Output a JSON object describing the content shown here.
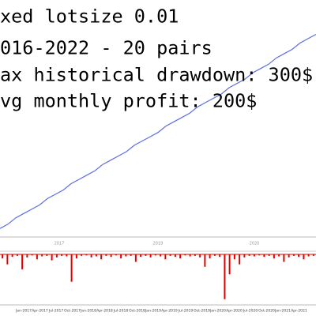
{
  "overlay_text": [
    "xed lotsize 0.01",
    "016-2022 - 20 pairs",
    "ax historical drawdown: 300$",
    "vg monthly profit: 200$"
  ],
  "chart_data": [
    {
      "type": "line",
      "color": "#5b6ee1",
      "ylim": [
        0,
        100
      ],
      "values": [
        4,
        6,
        9,
        11,
        13,
        15,
        18,
        20,
        22,
        25,
        27,
        29,
        31,
        34,
        36,
        38,
        40,
        43,
        45,
        47,
        49,
        52,
        54,
        56,
        58,
        61,
        63,
        65,
        67,
        70,
        72,
        74,
        77,
        79,
        81,
        84,
        86,
        88,
        91,
        93,
        95
      ]
    },
    {
      "type": "bar",
      "color": "#e00000",
      "ylim": [
        -100,
        0
      ],
      "annotations": [
        "2017",
        "2019",
        "2020"
      ],
      "x_tick_labels": [
        "Jan-2017",
        "Apr-2017",
        "Jul-2017",
        "Oct-2017",
        "Jan-2018",
        "Apr-2018",
        "Jul-2018",
        "Oct-2018",
        "Jan-2019",
        "Apr-2019",
        "Jul-2019",
        "Oct-2019",
        "Jan-2020",
        "Apr-2020",
        "Jul-2020",
        "Oct-2020",
        "Jan-2021",
        "Apr-2021"
      ],
      "values": [
        -8,
        -20,
        -5,
        -3,
        -30,
        -6,
        -2,
        -10,
        -4,
        -3,
        -12,
        -6,
        -3,
        -4,
        -55,
        -8,
        -3,
        -2,
        -6,
        -4,
        -10,
        -3,
        -5,
        -2,
        -8,
        -4,
        -3,
        -15,
        -5,
        -3,
        -6,
        -2,
        -4,
        -10,
        -3,
        -5,
        -8,
        -2,
        -4,
        -3,
        -6,
        -25,
        -8,
        -3,
        -5,
        -90,
        -40,
        -10,
        -20,
        -6,
        -3,
        -4,
        -2,
        -5,
        -3,
        -8,
        -4,
        -15,
        -6,
        -3,
        -5,
        -10,
        -4,
        -3
      ]
    }
  ]
}
